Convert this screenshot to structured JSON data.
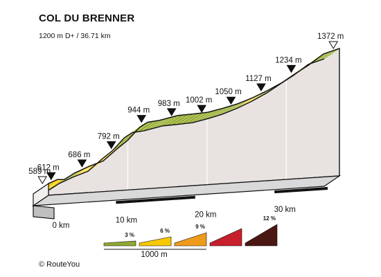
{
  "header": {
    "title": "COL DU BRENNER",
    "subtitle": "1200 m D+ / 36.71 km"
  },
  "chart_data": {
    "type": "area",
    "title": "COL DU BRENNER",
    "subtitle": "1200 m D+ / 36.71 km",
    "xlabel": "",
    "ylabel": "",
    "xlim": [
      0,
      36.71
    ],
    "ylim": [
      589,
      1372
    ],
    "x_ticks": [
      0,
      10,
      20,
      30
    ],
    "x_tick_labels": [
      "0 km",
      "10 km",
      "20 km",
      "30 km"
    ],
    "start": {
      "km": 0,
      "elevation": 589,
      "label": "589 m"
    },
    "finish": {
      "km": 36.71,
      "elevation": 1372,
      "label": "1372 m"
    },
    "waypoints": [
      {
        "km": 1.1,
        "elevation": 612,
        "label": "612 m"
      },
      {
        "km": 5.0,
        "elevation": 686,
        "label": "686 m"
      },
      {
        "km": 8.7,
        "elevation": 792,
        "label": "792 m"
      },
      {
        "km": 12.5,
        "elevation": 944,
        "label": "944 m"
      },
      {
        "km": 16.3,
        "elevation": 983,
        "label": "983 m"
      },
      {
        "km": 20.1,
        "elevation": 1002,
        "label": "1002 m"
      },
      {
        "km": 23.8,
        "elevation": 1050,
        "label": "1050 m"
      },
      {
        "km": 27.6,
        "elevation": 1127,
        "label": "1127 m"
      },
      {
        "km": 31.4,
        "elevation": 1234,
        "label": "1234 m"
      }
    ],
    "profile": [
      {
        "km": 0,
        "elevation": 589,
        "grade": "3"
      },
      {
        "km": 1.1,
        "elevation": 612,
        "grade": "3"
      },
      {
        "km": 2.0,
        "elevation": 612,
        "grade": "6"
      },
      {
        "km": 3.3,
        "elevation": 650,
        "grade": "3"
      },
      {
        "km": 5.0,
        "elevation": 686,
        "grade": "3"
      },
      {
        "km": 6.9,
        "elevation": 720,
        "grade": "6"
      },
      {
        "km": 8.7,
        "elevation": 792,
        "grade": "6"
      },
      {
        "km": 10.0,
        "elevation": 840,
        "grade": "6"
      },
      {
        "km": 11.5,
        "elevation": 915,
        "grade": "3"
      },
      {
        "km": 12.5,
        "elevation": 944,
        "grade": "3"
      },
      {
        "km": 14.0,
        "elevation": 955,
        "grade": "3"
      },
      {
        "km": 16.3,
        "elevation": 983,
        "grade": "3"
      },
      {
        "km": 18.2,
        "elevation": 992,
        "grade": "3"
      },
      {
        "km": 20.1,
        "elevation": 1002,
        "grade": "3"
      },
      {
        "km": 22.0,
        "elevation": 1025,
        "grade": "3"
      },
      {
        "km": 23.8,
        "elevation": 1050,
        "grade": "3"
      },
      {
        "km": 25.7,
        "elevation": 1085,
        "grade": "3"
      },
      {
        "km": 27.6,
        "elevation": 1127,
        "grade": "6"
      },
      {
        "km": 29.5,
        "elevation": 1175,
        "grade": "3"
      },
      {
        "km": 31.4,
        "elevation": 1234,
        "grade": "3"
      },
      {
        "km": 32.8,
        "elevation": 1275,
        "grade": "6"
      },
      {
        "km": 34.7,
        "elevation": 1340,
        "grade": "3"
      },
      {
        "km": 36.71,
        "elevation": 1372,
        "grade": "3"
      }
    ],
    "legend": {
      "scale_label": "1000 m",
      "placement": "bottom",
      "items": [
        {
          "grade": "3",
          "label": "3 %",
          "color": "#8fa832"
        },
        {
          "grade": "6",
          "label": "6 %",
          "color": "#f7c800"
        },
        {
          "grade": "9",
          "label": "9 %",
          "color": "#ee9a1b"
        },
        {
          "grade": "12",
          "label": "",
          "color": "#c81f2d"
        },
        {
          "grade": "12+",
          "label": "12 %",
          "color": "#4a1712"
        }
      ]
    },
    "colors": {
      "grade_3": "#8fa832",
      "grade_6": "#f7c800",
      "grade_9": "#ee9a1b",
      "stripe_light": "#f2e08a",
      "profile_side": "#e8e3e1",
      "base_top": "#d9d9d9",
      "outline": "#111111"
    }
  },
  "footer": {
    "copyright": "© RouteYou"
  }
}
